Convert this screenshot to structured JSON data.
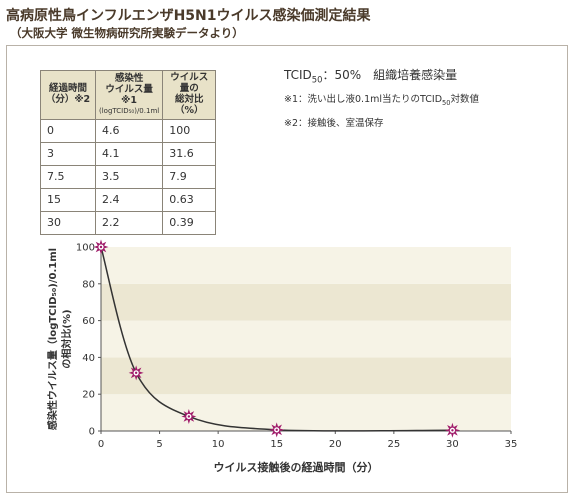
{
  "title": "高病原性鳥インフルエンザH5N1ウイルス感染価測定結果",
  "subtitle": "（大阪大学 微生物病研究所実験データより）",
  "table": {
    "headers": [
      {
        "line1": "経過時間",
        "line2": "（分）※2",
        "line3": ""
      },
      {
        "line1": "感染性",
        "line2": "ウイルス量※1",
        "line3": "(logTCID₅₀)/0.1ml"
      },
      {
        "line1": "ウイルス量の",
        "line2": "総対比（%）",
        "line3": ""
      }
    ],
    "rows": [
      [
        "0",
        "4.6",
        "100"
      ],
      [
        "3",
        "4.1",
        "31.6"
      ],
      [
        "7.5",
        "3.5",
        "7.9"
      ],
      [
        "15",
        "2.4",
        "0.63"
      ],
      [
        "30",
        "2.2",
        "0.39"
      ]
    ]
  },
  "notes": {
    "main_prefix": "TCID",
    "main_sub": "50",
    "main_suffix": "：50%　組織培養感染量",
    "note1_prefix": "※1：洗い出し液0.1ml当たりのTCID",
    "note1_sub": "50",
    "note1_suffix": "対数値",
    "note2": "※2：接触後、室温保存"
  },
  "chart_data": {
    "type": "line",
    "xlabel": "ウイルス接触後の経過時間（分）",
    "ylabel_line1": "感染性ウイルス量（logTCID₅₀)/0.1ml",
    "ylabel_line2": "の相対比(%)",
    "xlim": [
      0,
      35
    ],
    "ylim": [
      0,
      100
    ],
    "xticks": [
      0,
      5,
      10,
      15,
      20,
      25,
      30,
      35
    ],
    "yticks": [
      0,
      20,
      40,
      60,
      80,
      100
    ],
    "series": [
      {
        "x": [
          0,
          3,
          7.5,
          15,
          30
        ],
        "values": [
          100,
          31.6,
          7.9,
          0.63,
          0.39
        ]
      }
    ],
    "colors": {
      "marker": "#a01c6a",
      "line": "#333333",
      "band_light": "#f6f3e6",
      "band_dark": "#ece7d2"
    }
  }
}
